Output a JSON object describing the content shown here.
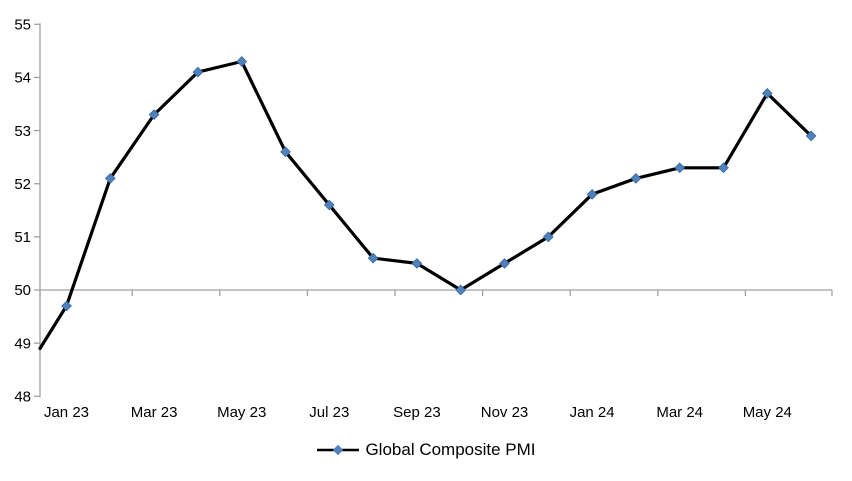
{
  "chart_data": {
    "type": "line",
    "title": "",
    "categories": [
      "Jan 23",
      "Feb 23",
      "Mar 23",
      "Apr 23",
      "May 23",
      "Jun 23",
      "Jul 23",
      "Aug 23",
      "Sep 23",
      "Oct 23",
      "Nov 23",
      "Dec 23",
      "Jan 24",
      "Feb 24",
      "Mar 24",
      "Apr 24",
      "May 24",
      "Jun 24"
    ],
    "series": [
      {
        "name": "Global Composite PMI",
        "values": [
          49.7,
          52.1,
          53.3,
          54.1,
          54.3,
          52.6,
          51.6,
          50.6,
          50.5,
          50.0,
          50.5,
          51.0,
          51.8,
          52.1,
          52.3,
          52.3,
          53.7,
          52.9
        ],
        "line_color": "#000000",
        "marker": "diamond",
        "marker_color": "#4F81BD",
        "marker_edge_color": "#38689E",
        "start_value_at_left_edge": 48.9
      }
    ],
    "x_tick_labels_shown": [
      "Jan 23",
      "Mar 23",
      "May 23",
      "Jul 23",
      "Sep 23",
      "Nov 23",
      "Jan 24",
      "Mar 24",
      "May 24"
    ],
    "y_ticks": [
      48,
      49,
      50,
      51,
      52,
      53,
      54,
      55
    ],
    "ylim": [
      48,
      55
    ],
    "x_axis_crosses_at": 50,
    "grid": "single horizontal line at 50 only",
    "axis_color": "#A0A0A0",
    "legend_position": "bottom-center"
  }
}
